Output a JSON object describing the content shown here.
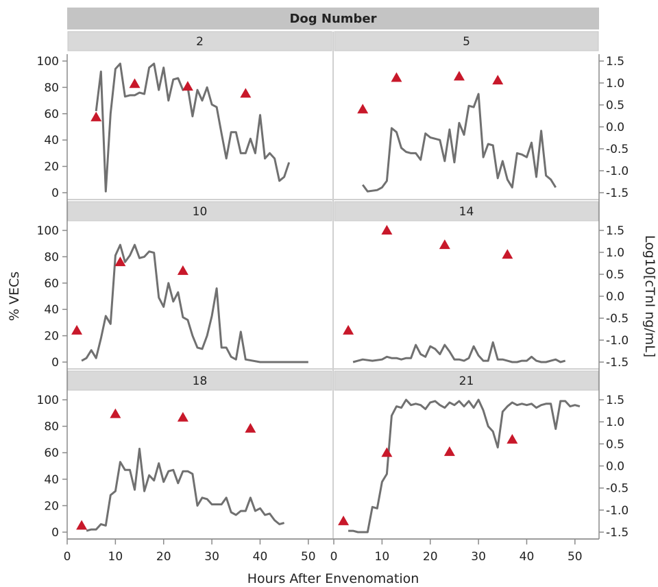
{
  "chart_data": {
    "type": "line",
    "facet_title": "Dog Number",
    "xlabel": "Hours After Envenomation",
    "ylabel_left": "% VECs",
    "ylabel_right": "Log10[cTnI ng/mL]",
    "xlim": [
      0,
      55
    ],
    "xticks": [
      0,
      10,
      20,
      30,
      40,
      50
    ],
    "ylim_left": [
      0,
      100
    ],
    "yticks_left": [
      0,
      20,
      40,
      60,
      80,
      100
    ],
    "ylim_right": [
      -1.5,
      1.5
    ],
    "yticks_right": [
      "1.5",
      "1.0",
      "0.5",
      "0.0",
      "-0.5",
      "-1.0",
      "-1.5"
    ],
    "colors": {
      "line": "#707070",
      "marker": "#c8182a",
      "header": "#d9d9d9",
      "title_bar": "#c4c4c4"
    },
    "panels": [
      {
        "label": "2",
        "vecs": [
          [
            6,
            62
          ],
          [
            7,
            92
          ],
          [
            8,
            1
          ],
          [
            9,
            60
          ],
          [
            10,
            94
          ],
          [
            11,
            98
          ],
          [
            12,
            73
          ],
          [
            13,
            74
          ],
          [
            14,
            74
          ],
          [
            15,
            76
          ],
          [
            16,
            75
          ],
          [
            17,
            95
          ],
          [
            18,
            98
          ],
          [
            19,
            78
          ],
          [
            20,
            95
          ],
          [
            21,
            70
          ],
          [
            22,
            86
          ],
          [
            23,
            87
          ],
          [
            24,
            78
          ],
          [
            25,
            80
          ],
          [
            26,
            58
          ],
          [
            27,
            78
          ],
          [
            28,
            70
          ],
          [
            29,
            80
          ],
          [
            30,
            67
          ],
          [
            31,
            65
          ],
          [
            32,
            45
          ],
          [
            33,
            26
          ],
          [
            34,
            46
          ],
          [
            35,
            46
          ],
          [
            36,
            30
          ],
          [
            37,
            30
          ],
          [
            38,
            41
          ],
          [
            39,
            30
          ],
          [
            40,
            59
          ],
          [
            41,
            26
          ],
          [
            42,
            30
          ],
          [
            43,
            26
          ],
          [
            44,
            9
          ],
          [
            45,
            12
          ],
          [
            46,
            23
          ]
        ],
        "ctni": [
          [
            6,
            0.22
          ],
          [
            14,
            0.98
          ],
          [
            25,
            0.92
          ],
          [
            37,
            0.76
          ]
        ]
      },
      {
        "label": "5",
        "vecs": [
          [
            6,
            6
          ],
          [
            7,
            1
          ],
          [
            9,
            2
          ],
          [
            10,
            4
          ],
          [
            11,
            9
          ],
          [
            12,
            49
          ],
          [
            13,
            46
          ],
          [
            14,
            34
          ],
          [
            15,
            31
          ],
          [
            16,
            30
          ],
          [
            17,
            30
          ],
          [
            18,
            25
          ],
          [
            19,
            45
          ],
          [
            20,
            42
          ],
          [
            21,
            41
          ],
          [
            22,
            40
          ],
          [
            23,
            24
          ],
          [
            24,
            48
          ],
          [
            25,
            23
          ],
          [
            26,
            53
          ],
          [
            27,
            44
          ],
          [
            28,
            66
          ],
          [
            29,
            65
          ],
          [
            30,
            75
          ],
          [
            31,
            27
          ],
          [
            32,
            37
          ],
          [
            33,
            36
          ],
          [
            34,
            11
          ],
          [
            35,
            24
          ],
          [
            36,
            10
          ],
          [
            37,
            4
          ],
          [
            38,
            30
          ],
          [
            39,
            29
          ],
          [
            40,
            27
          ],
          [
            41,
            38
          ],
          [
            42,
            12
          ],
          [
            43,
            47
          ],
          [
            44,
            13
          ],
          [
            45,
            10
          ],
          [
            46,
            4
          ]
        ],
        "ctni": [
          [
            6,
            0.4
          ],
          [
            13,
            1.12
          ],
          [
            26,
            1.15
          ],
          [
            34,
            1.06
          ]
        ]
      },
      {
        "label": "10",
        "vecs": [
          [
            3,
            1
          ],
          [
            4,
            3
          ],
          [
            5,
            9
          ],
          [
            6,
            3
          ],
          [
            7,
            18
          ],
          [
            8,
            35
          ],
          [
            9,
            29
          ],
          [
            10,
            81
          ],
          [
            11,
            89
          ],
          [
            12,
            76
          ],
          [
            13,
            81
          ],
          [
            14,
            89
          ],
          [
            15,
            79
          ],
          [
            16,
            80
          ],
          [
            17,
            84
          ],
          [
            18,
            83
          ],
          [
            19,
            49
          ],
          [
            20,
            42
          ],
          [
            21,
            60
          ],
          [
            22,
            46
          ],
          [
            23,
            53
          ],
          [
            24,
            34
          ],
          [
            25,
            32
          ],
          [
            26,
            20
          ],
          [
            27,
            11
          ],
          [
            28,
            10
          ],
          [
            29,
            20
          ],
          [
            30,
            35
          ],
          [
            31,
            56
          ],
          [
            32,
            11
          ],
          [
            33,
            11
          ],
          [
            34,
            4
          ],
          [
            35,
            2
          ],
          [
            36,
            23
          ],
          [
            37,
            2
          ],
          [
            40,
            0
          ],
          [
            45,
            0
          ],
          [
            50,
            0
          ]
        ],
        "ctni": [
          [
            2,
            -0.78
          ],
          [
            11,
            0.78
          ],
          [
            24,
            0.58
          ]
        ]
      },
      {
        "label": "14",
        "vecs": [
          [
            4,
            0
          ],
          [
            5,
            1
          ],
          [
            6,
            2
          ],
          [
            8,
            1
          ],
          [
            10,
            2
          ],
          [
            11,
            4
          ],
          [
            12,
            3
          ],
          [
            13,
            3
          ],
          [
            14,
            2
          ],
          [
            15,
            3
          ],
          [
            16,
            3
          ],
          [
            17,
            13
          ],
          [
            18,
            6
          ],
          [
            19,
            4
          ],
          [
            20,
            12
          ],
          [
            21,
            10
          ],
          [
            22,
            6
          ],
          [
            23,
            13
          ],
          [
            24,
            8
          ],
          [
            25,
            2
          ],
          [
            26,
            2
          ],
          [
            27,
            1
          ],
          [
            28,
            3
          ],
          [
            29,
            12
          ],
          [
            30,
            5
          ],
          [
            31,
            1
          ],
          [
            32,
            1
          ],
          [
            33,
            15
          ],
          [
            34,
            2
          ],
          [
            35,
            2
          ],
          [
            36,
            1
          ],
          [
            37,
            0
          ],
          [
            38,
            0
          ],
          [
            39,
            1
          ],
          [
            40,
            1
          ],
          [
            41,
            4
          ],
          [
            42,
            1
          ],
          [
            43,
            0
          ],
          [
            44,
            0
          ],
          [
            45,
            1
          ],
          [
            46,
            2
          ],
          [
            47,
            0
          ],
          [
            48,
            1
          ]
        ],
        "ctni": [
          [
            3,
            -0.78
          ],
          [
            11,
            1.5
          ],
          [
            23,
            1.17
          ],
          [
            36,
            0.95
          ]
        ]
      },
      {
        "label": "18",
        "vecs": [
          [
            4,
            1
          ],
          [
            5,
            2
          ],
          [
            6,
            2
          ],
          [
            7,
            6
          ],
          [
            8,
            5
          ],
          [
            9,
            28
          ],
          [
            10,
            31
          ],
          [
            11,
            53
          ],
          [
            12,
            47
          ],
          [
            13,
            47
          ],
          [
            14,
            32
          ],
          [
            15,
            63
          ],
          [
            16,
            31
          ],
          [
            17,
            43
          ],
          [
            18,
            39
          ],
          [
            19,
            52
          ],
          [
            20,
            38
          ],
          [
            21,
            46
          ],
          [
            22,
            47
          ],
          [
            23,
            37
          ],
          [
            24,
            46
          ],
          [
            25,
            46
          ],
          [
            26,
            44
          ],
          [
            27,
            20
          ],
          [
            28,
            26
          ],
          [
            29,
            25
          ],
          [
            30,
            21
          ],
          [
            31,
            21
          ],
          [
            32,
            21
          ],
          [
            33,
            26
          ],
          [
            34,
            15
          ],
          [
            35,
            13
          ],
          [
            36,
            16
          ],
          [
            37,
            16
          ],
          [
            38,
            26
          ],
          [
            39,
            16
          ],
          [
            40,
            18
          ],
          [
            41,
            13
          ],
          [
            42,
            14
          ],
          [
            43,
            9
          ],
          [
            44,
            6
          ],
          [
            45,
            7
          ]
        ],
        "ctni": [
          [
            3,
            -1.35
          ],
          [
            10,
            1.18
          ],
          [
            24,
            1.1
          ],
          [
            38,
            0.85
          ]
        ]
      },
      {
        "label": "21",
        "vecs": [
          [
            3,
            1
          ],
          [
            4,
            1
          ],
          [
            5,
            0
          ],
          [
            6,
            0
          ],
          [
            7,
            0
          ],
          [
            8,
            19
          ],
          [
            9,
            18
          ],
          [
            10,
            38
          ],
          [
            11,
            44
          ],
          [
            12,
            88
          ],
          [
            13,
            95
          ],
          [
            14,
            94
          ],
          [
            15,
            100
          ],
          [
            16,
            96
          ],
          [
            17,
            97
          ],
          [
            18,
            96
          ],
          [
            19,
            93
          ],
          [
            20,
            98
          ],
          [
            21,
            99
          ],
          [
            22,
            96
          ],
          [
            23,
            94
          ],
          [
            24,
            98
          ],
          [
            25,
            96
          ],
          [
            26,
            99
          ],
          [
            27,
            95
          ],
          [
            28,
            99
          ],
          [
            29,
            94
          ],
          [
            30,
            100
          ],
          [
            31,
            92
          ],
          [
            32,
            80
          ],
          [
            33,
            76
          ],
          [
            34,
            64
          ],
          [
            35,
            91
          ],
          [
            36,
            95
          ],
          [
            37,
            98
          ],
          [
            38,
            96
          ],
          [
            39,
            97
          ],
          [
            40,
            96
          ],
          [
            41,
            97
          ],
          [
            42,
            94
          ],
          [
            43,
            96
          ],
          [
            44,
            97
          ],
          [
            45,
            97
          ],
          [
            46,
            78
          ],
          [
            47,
            99
          ],
          [
            48,
            99
          ],
          [
            49,
            95
          ],
          [
            50,
            96
          ],
          [
            51,
            95
          ]
        ],
        "ctni": [
          [
            2,
            -1.25
          ],
          [
            11,
            0.3
          ],
          [
            24,
            0.32
          ],
          [
            37,
            0.6
          ]
        ]
      }
    ]
  }
}
